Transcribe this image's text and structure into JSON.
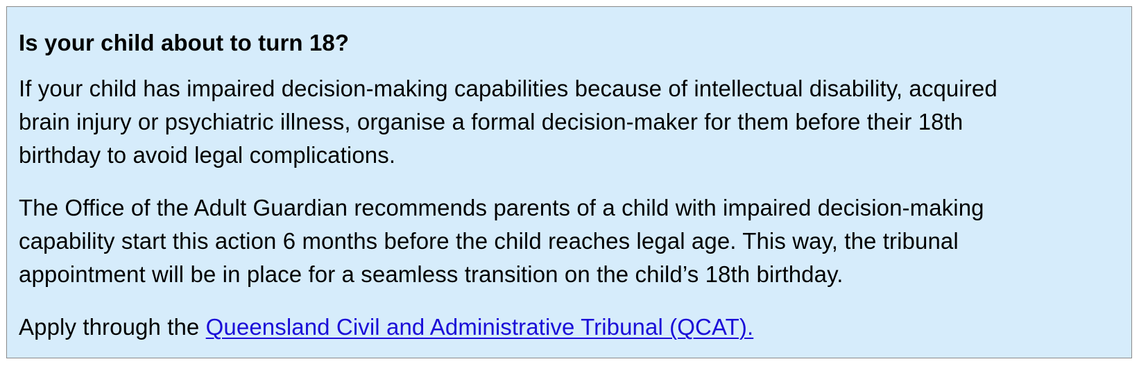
{
  "callout": {
    "title": "Is your child about to turn 18?",
    "paragraph1": {
      "lines": [
        "If your child has impaired decision-making capabilities because of intellectual disability, acquired",
        "brain injury or psychiatric illness, organise a formal decision-maker for them before their 18th",
        "birthday to avoid legal complications."
      ]
    },
    "paragraph2": {
      "lines": [
        "The Office of the Adult Guardian recommends parents of a child with impaired decision-making",
        "capability start this action 6 months before the child reaches legal age. This way, the tribunal",
        "appointment will be in place for a seamless transition on the child’s 18th birthday."
      ]
    },
    "paragraph3": {
      "lead": "Apply through the ",
      "link_text": "Queensland Civil and Administrative Tribunal (QCAT)."
    },
    "colors": {
      "background": "#d6ecfb",
      "border": "#8a8a8a",
      "link": "#1a0dd8"
    }
  }
}
